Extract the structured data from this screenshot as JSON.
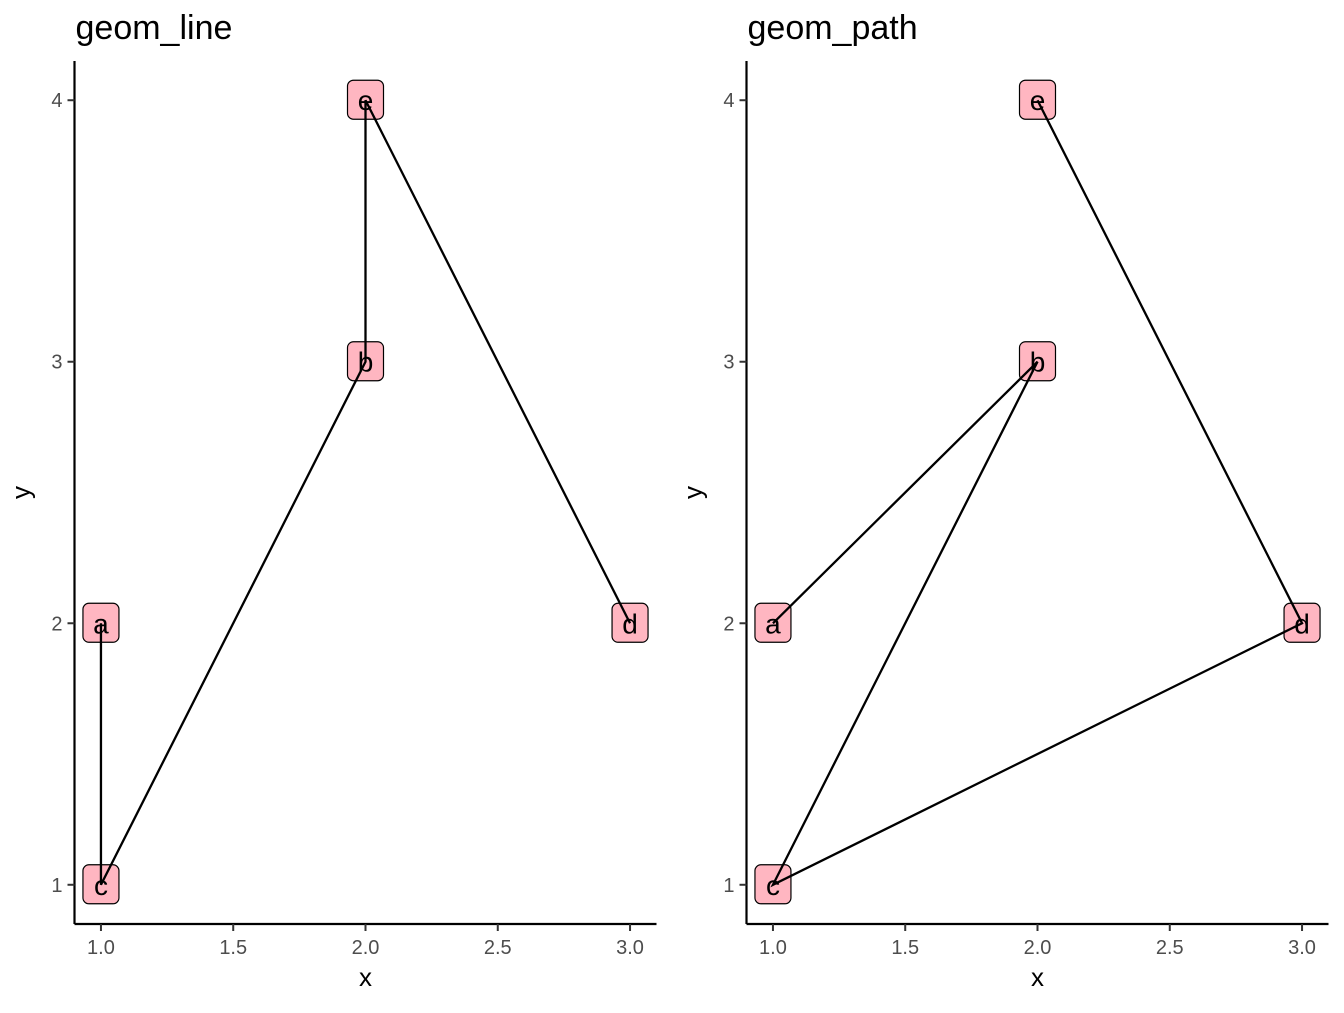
{
  "chart_data": [
    {
      "type": "line",
      "title": "geom_line",
      "xlabel": "x",
      "ylabel": "y",
      "xlim": [
        0.9,
        3.1
      ],
      "ylim": [
        0.85,
        4.15
      ],
      "xticks": [
        "1.0",
        "1.5",
        "2.0",
        "2.5",
        "3.0"
      ],
      "yticks": [
        "1",
        "2",
        "3",
        "4"
      ],
      "grid": false,
      "points": [
        {
          "label": "a",
          "x": 1,
          "y": 2
        },
        {
          "label": "b",
          "x": 2,
          "y": 3
        },
        {
          "label": "c",
          "x": 1,
          "y": 1
        },
        {
          "label": "d",
          "x": 3,
          "y": 2
        },
        {
          "label": "e",
          "x": 2,
          "y": 4
        }
      ],
      "connect_order": [
        "a",
        "c",
        "b",
        "e",
        "d"
      ],
      "label_fill": "#ffb6c1",
      "line_color": "#000000"
    },
    {
      "type": "line",
      "title": "geom_path",
      "xlabel": "x",
      "ylabel": "y",
      "xlim": [
        0.9,
        3.1
      ],
      "ylim": [
        0.85,
        4.15
      ],
      "xticks": [
        "1.0",
        "1.5",
        "2.0",
        "2.5",
        "3.0"
      ],
      "yticks": [
        "1",
        "2",
        "3",
        "4"
      ],
      "grid": false,
      "points": [
        {
          "label": "a",
          "x": 1,
          "y": 2
        },
        {
          "label": "b",
          "x": 2,
          "y": 3
        },
        {
          "label": "c",
          "x": 1,
          "y": 1
        },
        {
          "label": "d",
          "x": 3,
          "y": 2
        },
        {
          "label": "e",
          "x": 2,
          "y": 4
        }
      ],
      "connect_order": [
        "a",
        "b",
        "c",
        "d",
        "e"
      ],
      "label_fill": "#ffb6c1",
      "line_color": "#000000"
    }
  ]
}
